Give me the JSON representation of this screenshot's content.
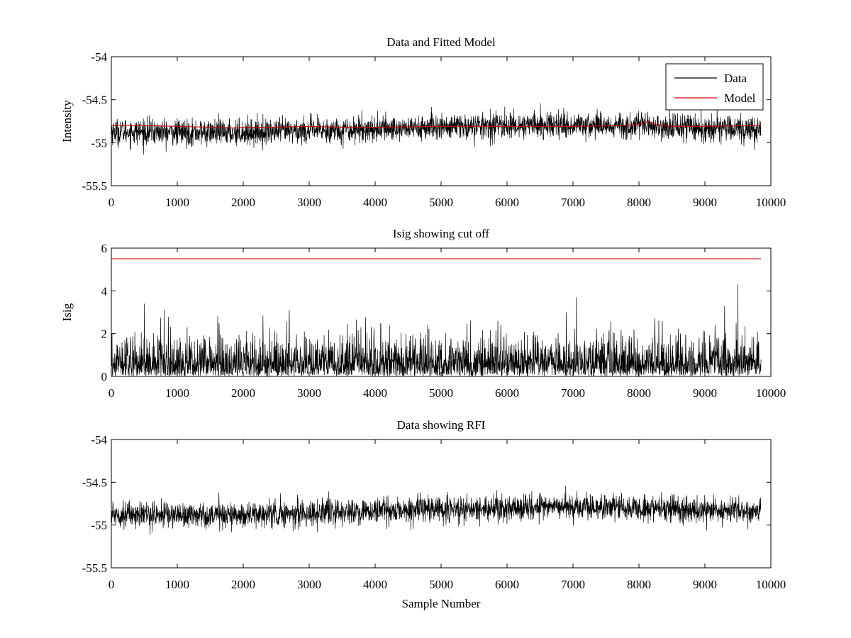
{
  "chart_data": [
    {
      "type": "line",
      "title": "Data and Fitted Model",
      "xlabel": "",
      "ylabel": "Intensity",
      "xlim": [
        0,
        10000
      ],
      "ylim": [
        -55.5,
        -54
      ],
      "xticks": [
        "0",
        "1000",
        "2000",
        "3000",
        "4000",
        "5000",
        "6000",
        "7000",
        "8000",
        "9000",
        "10000"
      ],
      "yticks": [
        "-55.5",
        "-55",
        "-54.5",
        "-54"
      ],
      "legend": {
        "position": "top-right",
        "entries": [
          "Data",
          "Model"
        ]
      },
      "series": [
        {
          "name": "Data",
          "color": "#000000",
          "style": "dense-noise",
          "x_range": [
            0,
            9850
          ],
          "mean_x": [
            0,
            1000,
            2000,
            3000,
            4000,
            5000,
            6000,
            7000,
            8000,
            9000,
            9850
          ],
          "mean_y": [
            -54.87,
            -54.88,
            -54.88,
            -54.86,
            -54.84,
            -54.82,
            -54.8,
            -54.79,
            -54.8,
            -54.83,
            -54.84
          ],
          "approx_range": [
            -55.22,
            -54.44
          ]
        },
        {
          "name": "Model",
          "color": "#cc0000",
          "x": [
            0,
            500,
            1000,
            1500,
            1900,
            2000,
            2500,
            3000,
            3500,
            4000,
            5000,
            6000,
            7000,
            7800,
            8050,
            8150,
            8250,
            8500,
            9000,
            9850
          ],
          "y": [
            -54.8,
            -54.8,
            -54.81,
            -54.82,
            -54.83,
            -54.82,
            -54.82,
            -54.81,
            -54.82,
            -54.82,
            -54.81,
            -54.81,
            -54.81,
            -54.8,
            -54.78,
            -54.75,
            -54.79,
            -54.81,
            -54.81,
            -54.8
          ]
        }
      ]
    },
    {
      "type": "line",
      "title": "Isig showing cut off",
      "xlabel": "",
      "ylabel": "Isig",
      "xlim": [
        0,
        10000
      ],
      "ylim": [
        0,
        6
      ],
      "xticks": [
        "0",
        "1000",
        "2000",
        "3000",
        "4000",
        "5000",
        "6000",
        "7000",
        "8000",
        "9000",
        "10000"
      ],
      "yticks": [
        "0",
        "2",
        "4",
        "6"
      ],
      "series": [
        {
          "name": "Isig",
          "color": "#000000",
          "style": "dense-noise",
          "x_range": [
            0,
            9850
          ],
          "typical_range": [
            0,
            2.5
          ],
          "peaks_x": [
            500,
            800,
            2700,
            6900,
            7050,
            9300,
            9500
          ],
          "peaks_y": [
            3.4,
            3.1,
            3.1,
            3.0,
            3.7,
            3.3,
            4.3
          ]
        },
        {
          "name": "Cut off",
          "color": "#cc0000",
          "x": [
            0,
            9850
          ],
          "y": [
            5.5,
            5.5
          ]
        }
      ]
    },
    {
      "type": "line",
      "title": "Data showing RFI",
      "xlabel": "Sample Number",
      "ylabel": "",
      "xlim": [
        0,
        10000
      ],
      "ylim": [
        -55.5,
        -54
      ],
      "xticks": [
        "0",
        "1000",
        "2000",
        "3000",
        "4000",
        "5000",
        "6000",
        "7000",
        "8000",
        "9000",
        "10000"
      ],
      "yticks": [
        "-55.5",
        "-55",
        "-54.5",
        "-54"
      ],
      "series": [
        {
          "name": "Data",
          "color": "#000000",
          "style": "dense-noise",
          "x_range": [
            0,
            9850
          ],
          "mean_x": [
            0,
            1000,
            2000,
            3000,
            4000,
            5000,
            6000,
            7000,
            8000,
            9000,
            9850
          ],
          "mean_y": [
            -54.87,
            -54.88,
            -54.88,
            -54.86,
            -54.84,
            -54.82,
            -54.8,
            -54.79,
            -54.8,
            -54.83,
            -54.84
          ],
          "approx_range": [
            -55.22,
            -54.44
          ]
        }
      ]
    }
  ]
}
